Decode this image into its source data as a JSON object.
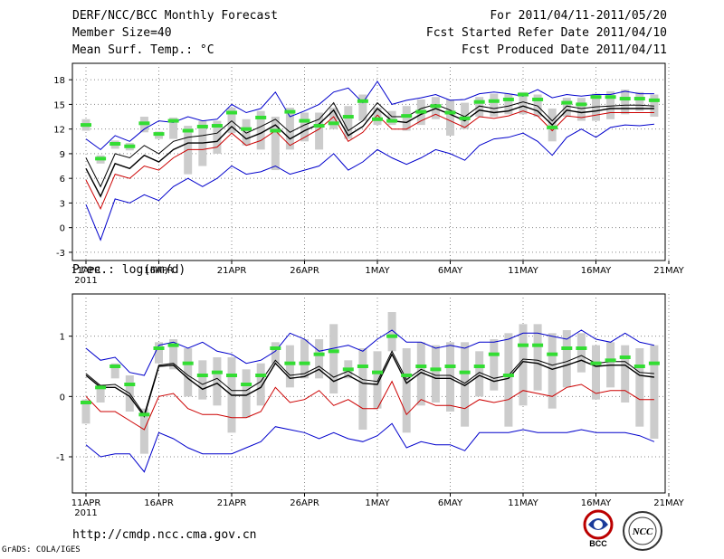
{
  "header": {
    "title": "DERF/NCC/BCC Monthly Forecast",
    "members": "Member Size=40",
    "variable": "Mean Surf. Temp.: °C",
    "period": "For 2011/04/11-2011/05/20",
    "start": "Fcst Started Refer Date 2011/04/10",
    "produced": "Fcst Produced Date 2011/04/11"
  },
  "colors": {
    "max_min": "#0000cc",
    "mean": "#000000",
    "spread": "#cc0000",
    "obs": "#33dd33",
    "box": "#cccccc"
  },
  "chart_data": [
    {
      "type": "line",
      "title": "Mean Surf. Temp.: °C",
      "ylim": [
        -4,
        20
      ],
      "yticks": [
        "-3",
        "0",
        "3",
        "6",
        "9",
        "12",
        "15",
        "18"
      ],
      "ytick_values": [
        -3,
        0,
        3,
        6,
        9,
        12,
        15,
        18
      ],
      "x_tick_labels": [
        "11APR",
        "16APR",
        "21APR",
        "26APR",
        "1MAY",
        "6MAY",
        "11MAY",
        "16MAY",
        "21MAY"
      ],
      "x_tick_index": [
        0,
        5,
        10,
        15,
        20,
        25,
        30,
        35,
        40
      ],
      "year_label": "2011",
      "series": [
        {
          "name": "max",
          "color": "#0000cc",
          "values": [
            10.8,
            9.5,
            11.2,
            10.5,
            12.0,
            13.0,
            12.8,
            13.5,
            13.0,
            13.2,
            15.0,
            14.0,
            14.5,
            16.5,
            13.5,
            14.2,
            15.0,
            16.5,
            17.0,
            15.2,
            17.8,
            15.0,
            15.5,
            15.8,
            16.2,
            15.5,
            15.6,
            16.3,
            16.5,
            16.3,
            16.0,
            16.8,
            15.8,
            16.2,
            16.0,
            16.2,
            16.2,
            16.6,
            16.3,
            16.3
          ]
        },
        {
          "name": "upper",
          "color": "#000000",
          "values": [
            8.5,
            5.0,
            9.0,
            8.5,
            10.0,
            9.0,
            10.5,
            11.0,
            11.2,
            11.5,
            13.0,
            11.5,
            12.3,
            13.2,
            11.6,
            12.5,
            13.2,
            15.2,
            11.8,
            13.0,
            15.2,
            13.5,
            13.5,
            14.5,
            15.0,
            14.3,
            13.5,
            14.8,
            14.5,
            14.8,
            15.3,
            14.8,
            13.0,
            14.8,
            14.5,
            14.7,
            14.8,
            14.9,
            14.9,
            14.8
          ]
        },
        {
          "name": "mean",
          "color": "#000000",
          "values": [
            7.2,
            3.8,
            7.8,
            7.2,
            8.8,
            8.0,
            9.5,
            10.3,
            10.3,
            10.5,
            12.3,
            10.8,
            11.5,
            12.5,
            10.8,
            11.8,
            12.6,
            14.3,
            11.2,
            12.3,
            14.5,
            13.0,
            12.8,
            13.8,
            14.5,
            13.8,
            13.0,
            14.3,
            14.0,
            14.2,
            14.8,
            14.2,
            12.5,
            14.3,
            14.0,
            14.2,
            14.5,
            14.5,
            14.5,
            14.5
          ]
        },
        {
          "name": "lower",
          "color": "#cc0000",
          "values": [
            5.8,
            2.3,
            6.5,
            6.0,
            7.5,
            7.0,
            8.5,
            9.5,
            9.5,
            9.8,
            11.5,
            10.0,
            10.6,
            11.8,
            10.0,
            11.0,
            12.0,
            13.5,
            10.5,
            11.6,
            13.7,
            12.0,
            12.0,
            13.0,
            13.8,
            13.0,
            12.2,
            13.5,
            13.3,
            13.6,
            14.2,
            13.6,
            11.8,
            13.6,
            13.4,
            13.7,
            14.0,
            14.0,
            14.0,
            14.0
          ]
        },
        {
          "name": "min",
          "color": "#0000cc",
          "values": [
            2.8,
            -1.5,
            3.5,
            3.0,
            4.0,
            3.3,
            5.0,
            6.0,
            5.0,
            6.0,
            7.5,
            6.5,
            6.8,
            7.5,
            6.5,
            7.0,
            7.5,
            9.0,
            7.0,
            8.0,
            9.5,
            8.5,
            7.7,
            8.5,
            9.5,
            9.0,
            8.2,
            10.0,
            10.8,
            11.0,
            11.5,
            10.5,
            8.8,
            11.0,
            12.0,
            11.0,
            12.2,
            12.5,
            12.4,
            12.6
          ]
        },
        {
          "name": "observation",
          "color": "#33dd33",
          "values": [
            12.5,
            8.4,
            10.2,
            9.9,
            12.7,
            11.4,
            13.0,
            11.8,
            12.3,
            12.4,
            14.0,
            12.0,
            13.4,
            11.8,
            14.1,
            13.0,
            12.4,
            12.7,
            13.5,
            15.4,
            13.2,
            13.0,
            13.6,
            14.1,
            14.8,
            14.0,
            13.3,
            15.3,
            15.4,
            15.6,
            16.2,
            15.6,
            12.2,
            15.2,
            15.0,
            15.9,
            15.9,
            15.7,
            15.7,
            15.5
          ]
        },
        {
          "name": "box_top",
          "color": "#cccccc",
          "values": [
            13.2,
            8.8,
            10.6,
            10.3,
            13.5,
            11.7,
            13.4,
            12.4,
            13.0,
            13.0,
            14.6,
            13.2,
            14.2,
            13.5,
            14.6,
            14.0,
            14.0,
            14.6,
            14.8,
            16.2,
            14.6,
            14.2,
            14.8,
            15.6,
            15.9,
            15.6,
            15.2,
            15.9,
            16.3,
            16.3,
            16.5,
            16.2,
            14.5,
            15.8,
            15.8,
            16.3,
            16.6,
            16.8,
            16.5,
            16.2
          ]
        },
        {
          "name": "box_bottom",
          "color": "#cccccc",
          "values": [
            11.8,
            7.8,
            9.6,
            9.4,
            11.6,
            10.8,
            10.8,
            6.5,
            7.5,
            9.0,
            11.5,
            10.0,
            9.5,
            7.0,
            9.5,
            10.5,
            9.5,
            12.0,
            10.8,
            13.0,
            12.5,
            12.5,
            11.8,
            12.5,
            13.2,
            11.2,
            12.0,
            13.5,
            13.5,
            13.8,
            13.8,
            13.5,
            10.5,
            13.5,
            13.0,
            13.0,
            13.2,
            13.8,
            14.2,
            13.5
          ]
        }
      ]
    },
    {
      "type": "line",
      "title": "Prec.: log(mm/d)",
      "ylim": [
        -1.6,
        1.7
      ],
      "yticks": [
        "-1",
        "0",
        "1"
      ],
      "ytick_values": [
        -1,
        0,
        1
      ],
      "x_tick_labels": [
        "11APR",
        "16APR",
        "21APR",
        "26APR",
        "1MAY",
        "6MAY",
        "11MAY",
        "16MAY",
        "21MAY"
      ],
      "x_tick_index": [
        0,
        5,
        10,
        15,
        20,
        25,
        30,
        35,
        40
      ],
      "year_label": "2011",
      "series": [
        {
          "name": "max",
          "color": "#0000cc",
          "values": [
            0.8,
            0.6,
            0.65,
            0.4,
            0.35,
            0.85,
            0.9,
            0.8,
            0.9,
            0.75,
            0.7,
            0.55,
            0.6,
            0.75,
            1.05,
            0.95,
            0.75,
            0.8,
            0.85,
            0.75,
            0.95,
            1.1,
            0.9,
            0.9,
            0.8,
            0.85,
            0.8,
            0.9,
            0.9,
            0.95,
            1.05,
            1.05,
            1.0,
            0.95,
            1.1,
            0.95,
            0.9,
            1.05,
            0.9,
            0.85
          ]
        },
        {
          "name": "upper",
          "color": "#000000",
          "values": [
            0.38,
            0.18,
            0.2,
            0.05,
            -0.3,
            0.52,
            0.55,
            0.35,
            0.2,
            0.3,
            0.1,
            0.1,
            0.25,
            0.6,
            0.35,
            0.38,
            0.5,
            0.32,
            0.42,
            0.28,
            0.25,
            0.75,
            0.28,
            0.45,
            0.35,
            0.35,
            0.22,
            0.4,
            0.3,
            0.35,
            0.62,
            0.6,
            0.52,
            0.58,
            0.68,
            0.55,
            0.58,
            0.58,
            0.4,
            0.38
          ]
        },
        {
          "name": "mean",
          "color": "#000000",
          "values": [
            0.35,
            0.15,
            0.15,
            0.0,
            -0.33,
            0.5,
            0.52,
            0.3,
            0.12,
            0.22,
            0.02,
            0.02,
            0.15,
            0.55,
            0.3,
            0.33,
            0.45,
            0.25,
            0.35,
            0.22,
            0.2,
            0.7,
            0.22,
            0.4,
            0.3,
            0.3,
            0.18,
            0.35,
            0.25,
            0.3,
            0.58,
            0.55,
            0.45,
            0.52,
            0.6,
            0.5,
            0.52,
            0.52,
            0.35,
            0.32
          ]
        },
        {
          "name": "lower",
          "color": "#cc0000",
          "values": [
            0.0,
            -0.25,
            -0.25,
            -0.4,
            -0.55,
            0.0,
            0.05,
            -0.2,
            -0.3,
            -0.3,
            -0.35,
            -0.35,
            -0.25,
            0.15,
            -0.1,
            -0.05,
            0.1,
            -0.15,
            -0.05,
            -0.2,
            -0.2,
            0.25,
            -0.3,
            -0.05,
            -0.15,
            -0.15,
            -0.2,
            -0.05,
            -0.1,
            -0.05,
            0.1,
            0.05,
            0.0,
            0.15,
            0.2,
            0.05,
            0.1,
            0.1,
            -0.05,
            -0.05
          ]
        },
        {
          "name": "min",
          "color": "#0000cc",
          "values": [
            -0.8,
            -1.0,
            -0.95,
            -0.95,
            -1.25,
            -0.6,
            -0.7,
            -0.85,
            -0.95,
            -0.95,
            -0.95,
            -0.85,
            -0.75,
            -0.5,
            -0.55,
            -0.6,
            -0.7,
            -0.6,
            -0.7,
            -0.75,
            -0.65,
            -0.45,
            -0.85,
            -0.75,
            -0.8,
            -0.8,
            -0.9,
            -0.6,
            -0.6,
            -0.6,
            -0.55,
            -0.6,
            -0.6,
            -0.6,
            -0.55,
            -0.6,
            -0.6,
            -0.6,
            -0.65,
            -0.75
          ]
        },
        {
          "name": "observation",
          "color": "#33dd33",
          "values": [
            -0.1,
            0.15,
            0.5,
            0.2,
            -0.3,
            0.8,
            0.85,
            0.55,
            0.35,
            0.4,
            0.35,
            0.2,
            0.35,
            0.8,
            0.55,
            0.55,
            0.7,
            0.75,
            0.45,
            0.5,
            0.4,
            1.0,
            0.35,
            0.5,
            0.45,
            0.5,
            0.4,
            0.5,
            0.7,
            0.35,
            0.85,
            0.85,
            0.7,
            0.8,
            0.8,
            0.55,
            0.6,
            0.65,
            0.5,
            0.55
          ]
        },
        {
          "name": "box_top",
          "color": "#cccccc",
          "values": [
            -0.05,
            0.2,
            0.55,
            0.35,
            -0.2,
            0.9,
            0.95,
            0.8,
            0.6,
            0.65,
            0.65,
            0.45,
            0.55,
            0.9,
            0.85,
            0.95,
            0.95,
            1.2,
            0.6,
            0.8,
            0.75,
            1.4,
            0.8,
            0.9,
            0.85,
            0.9,
            0.9,
            0.75,
            0.95,
            1.05,
            1.2,
            1.2,
            1.05,
            1.1,
            1.05,
            0.85,
            0.9,
            0.85,
            0.8,
            0.85
          ]
        },
        {
          "name": "box_bottom",
          "color": "#cccccc",
          "values": [
            -0.45,
            -0.1,
            0.3,
            -0.25,
            -0.95,
            0.55,
            0.45,
            0.0,
            -0.05,
            -0.15,
            -0.6,
            -0.35,
            -0.15,
            0.55,
            0.15,
            0.3,
            0.3,
            0.05,
            0.3,
            -0.55,
            -0.2,
            0.75,
            -0.6,
            -0.15,
            -0.1,
            -0.25,
            -0.5,
            0.0,
            0.1,
            -0.5,
            -0.15,
            0.1,
            -0.2,
            0.15,
            0.4,
            -0.05,
            0.15,
            -0.1,
            -0.5,
            -0.7
          ]
        }
      ]
    }
  ],
  "footer": {
    "url": "http://cmdp.ncc.cma.gov.cn",
    "credit": "GrADS: COLA/IGES"
  },
  "logos": {
    "bcc": "BCC",
    "ncc": "NCC"
  }
}
